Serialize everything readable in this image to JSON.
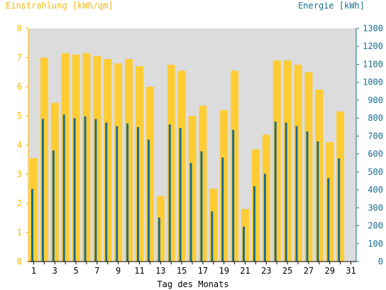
{
  "chart_data": {
    "type": "bar",
    "ylabel_left": "Einstrahlung [kWh/qm]",
    "ylabel_right": "Energie [kWh]",
    "xlabel": "Tag des Monats",
    "ylim_left": [
      0,
      8
    ],
    "ylim_right": [
      0,
      1300
    ],
    "yticks_left": [
      0,
      1,
      2,
      3,
      4,
      5,
      6,
      7,
      8
    ],
    "yticks_right": [
      0,
      100,
      200,
      300,
      400,
      500,
      600,
      700,
      800,
      900,
      1000,
      1100,
      1200,
      1300
    ],
    "xticks": [
      1,
      3,
      5,
      7,
      9,
      11,
      13,
      15,
      17,
      19,
      21,
      23,
      25,
      27,
      29,
      31
    ],
    "days": [
      1,
      2,
      3,
      4,
      5,
      6,
      7,
      8,
      9,
      10,
      11,
      12,
      13,
      14,
      15,
      16,
      17,
      18,
      19,
      20,
      21,
      22,
      23,
      24,
      25,
      26,
      27,
      28,
      29,
      30,
      31
    ],
    "grid": false,
    "colors": {
      "plot_background": "#dcdcdc",
      "einstrahlung": "#ffcc33",
      "energie": "#1a6e8e",
      "left_axis": "#f5b800",
      "right_axis": "#1a6e8e"
    },
    "series": [
      {
        "name": "Einstrahlung [kWh/qm]",
        "axis": "left",
        "values": [
          3.55,
          7.0,
          5.45,
          7.15,
          7.1,
          7.15,
          7.05,
          6.95,
          6.8,
          6.95,
          6.7,
          6.0,
          2.25,
          6.75,
          6.55,
          5.0,
          5.35,
          2.5,
          5.2,
          6.55,
          1.8,
          3.85,
          4.35,
          6.9,
          6.9,
          6.75,
          6.5,
          5.9,
          4.1,
          5.15,
          null
        ]
      },
      {
        "name": "Energie [kWh]",
        "axis": "right",
        "values": [
          405,
          795,
          620,
          820,
          800,
          810,
          795,
          775,
          755,
          770,
          750,
          680,
          245,
          765,
          745,
          550,
          615,
          280,
          580,
          735,
          195,
          420,
          490,
          780,
          775,
          755,
          725,
          670,
          465,
          575,
          null
        ]
      }
    ]
  }
}
